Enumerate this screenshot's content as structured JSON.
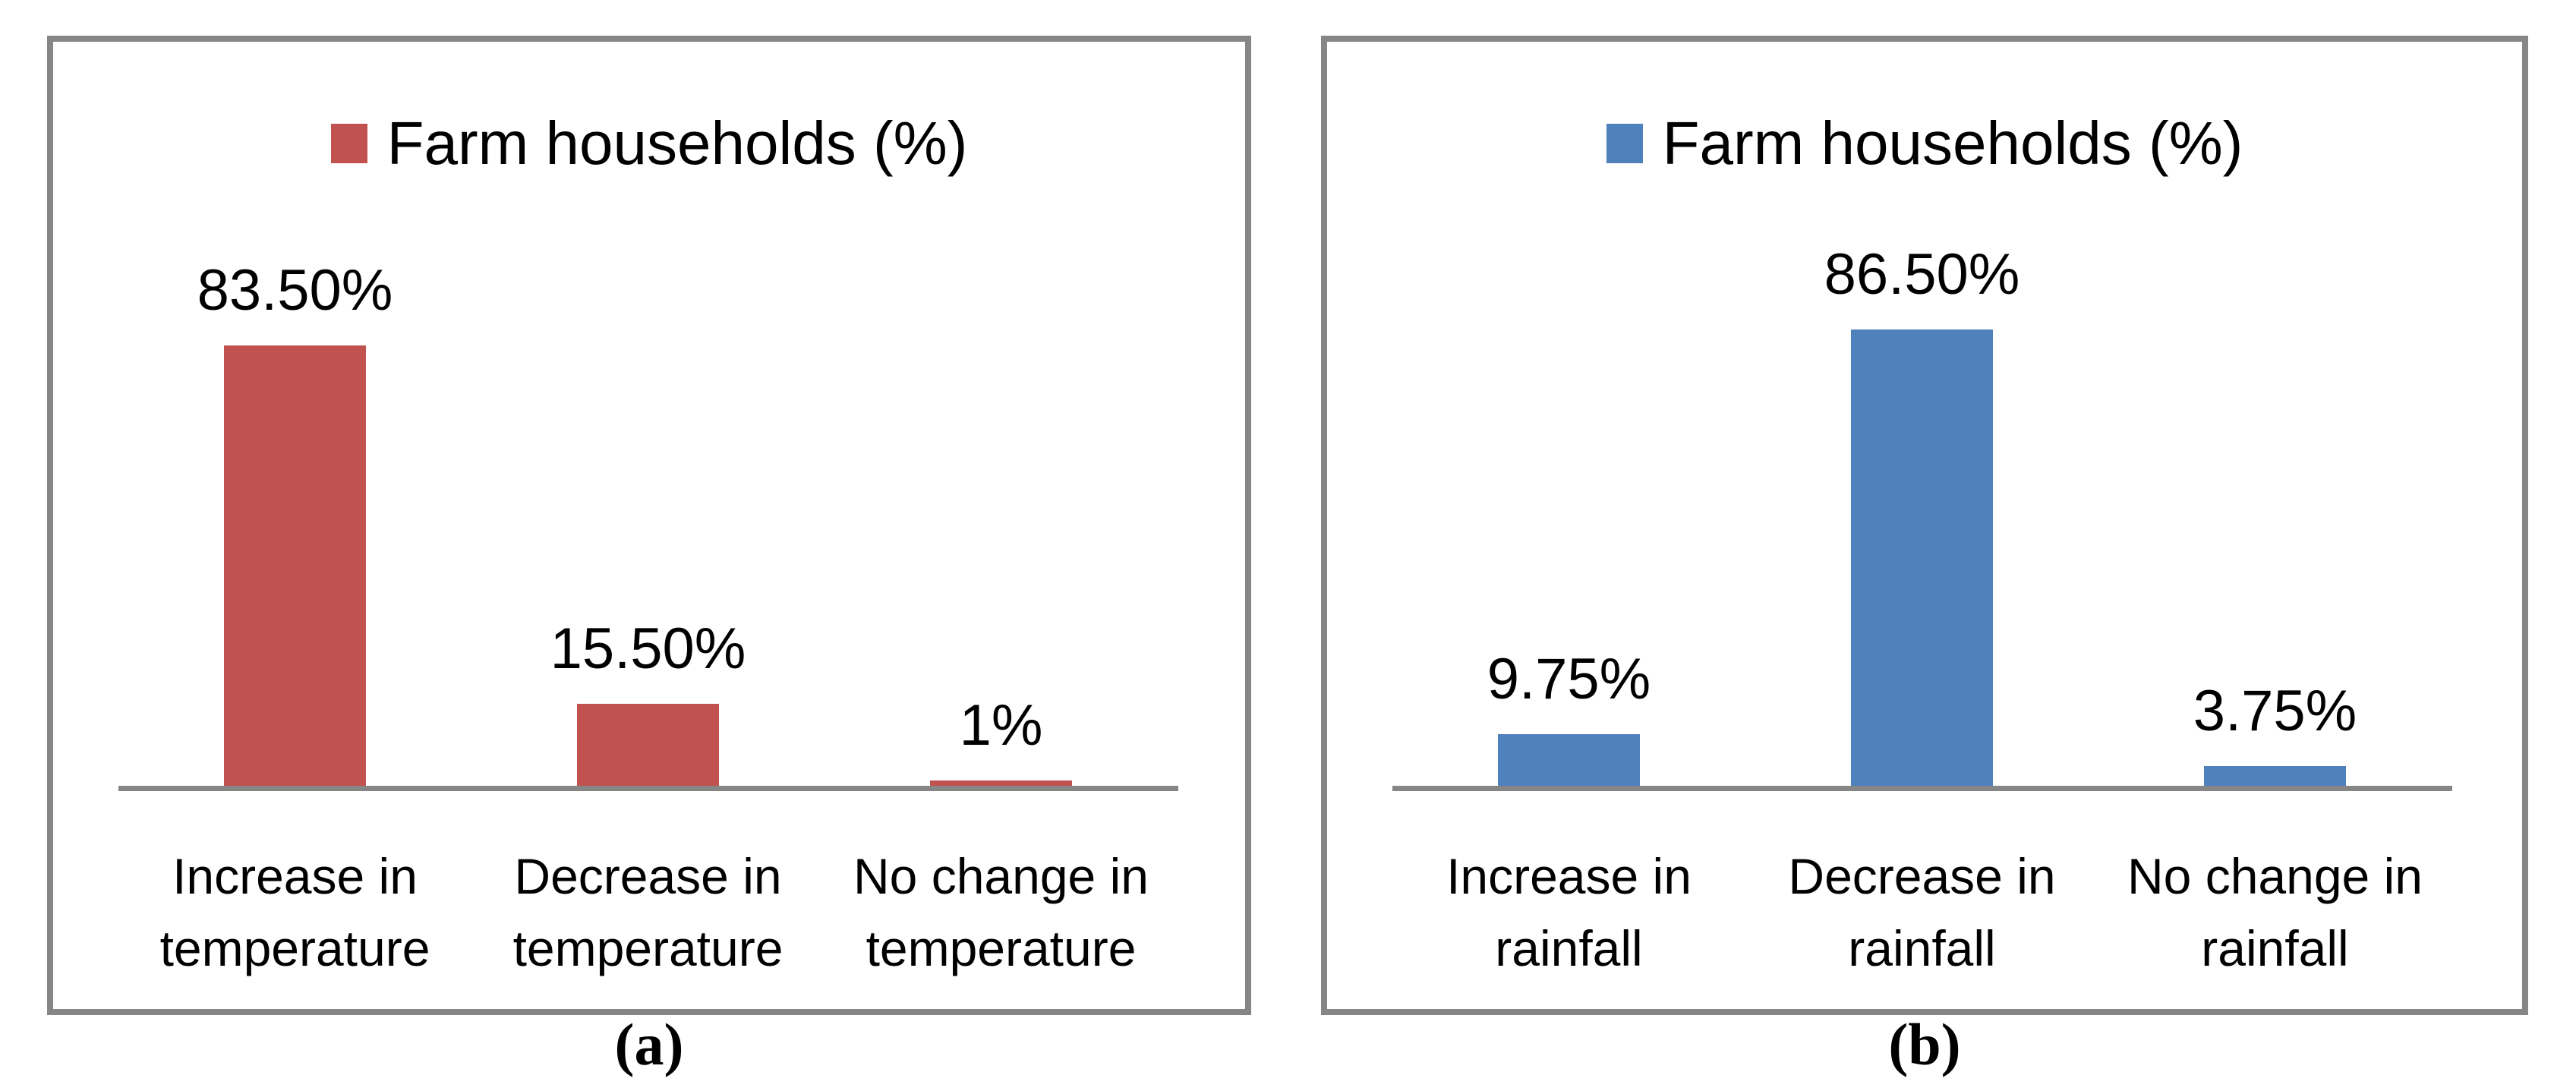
{
  "figure": {
    "caption_a": "(a)",
    "caption_b": "(b)"
  },
  "colors": {
    "red_bar": "#C15250",
    "blue_bar": "#4F81BD",
    "axis_gray": "#868686",
    "panel_border_gray": "#868686",
    "text": "#000000"
  },
  "chart_data": [
    {
      "type": "bar",
      "panel": "a",
      "legend": "Farm households (%)",
      "legend_position": "top-center",
      "bar_color": "#C15250",
      "categories": [
        "Increase in\ntemperature",
        "Decrease in\ntemperature",
        "No change in\ntemperature"
      ],
      "values": [
        83.5,
        15.5,
        1
      ],
      "value_labels": [
        "83.50%",
        "15.50%",
        "1%"
      ],
      "title": "",
      "xlabel": "",
      "ylabel": "",
      "ylim": [
        0,
        100
      ],
      "grid": false,
      "y_axis_ticks_visible": false
    },
    {
      "type": "bar",
      "panel": "b",
      "legend": "Farm households (%)",
      "legend_position": "top-center",
      "bar_color": "#4F81BD",
      "categories": [
        "Increase in\nrainfall",
        "Decrease in\nrainfall",
        "No change in\nrainfall"
      ],
      "values": [
        9.75,
        86.5,
        3.75
      ],
      "value_labels": [
        "9.75%",
        "86.50%",
        "3.75%"
      ],
      "title": "",
      "xlabel": "",
      "ylabel": "",
      "ylim": [
        0,
        100
      ],
      "grid": false,
      "y_axis_ticks_visible": false
    }
  ]
}
